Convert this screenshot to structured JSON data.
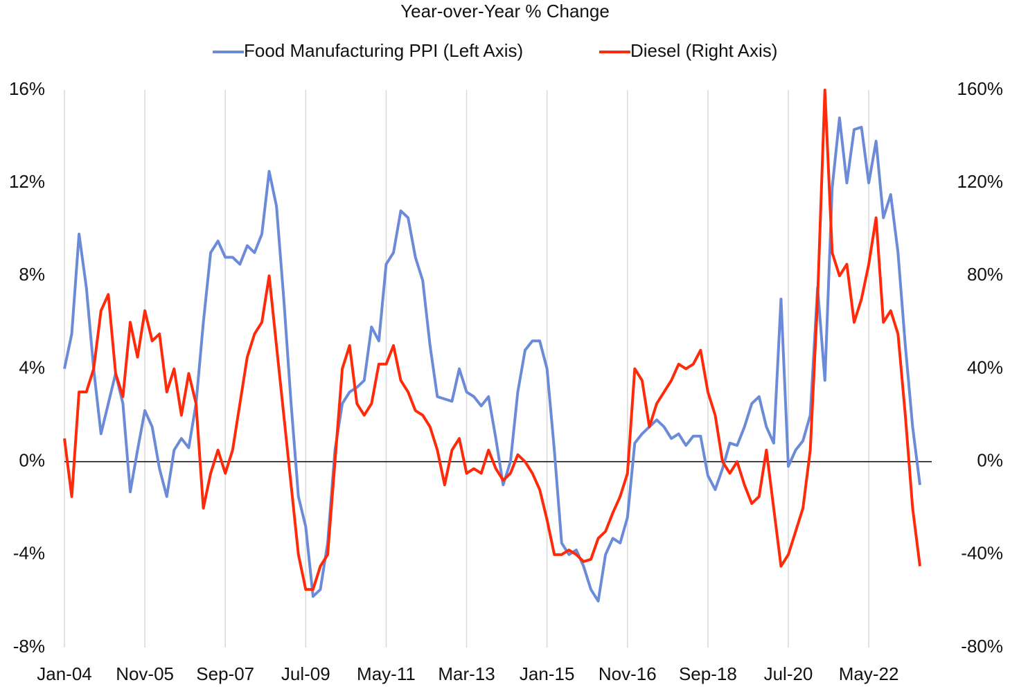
{
  "chart_data": {
    "type": "line",
    "title": "Year-over-Year % Change",
    "categories": [
      "Jan-04",
      null,
      null,
      null,
      null,
      null,
      null,
      null,
      null,
      null,
      null,
      "Nov-05",
      null,
      null,
      null,
      null,
      null,
      null,
      null,
      null,
      null,
      null,
      "Sep-07",
      null,
      null,
      null,
      null,
      null,
      null,
      null,
      null,
      null,
      null,
      "Jul-09",
      null,
      null,
      null,
      null,
      null,
      null,
      null,
      null,
      null,
      null,
      "May-11",
      null,
      null,
      null,
      null,
      null,
      null,
      null,
      null,
      null,
      null,
      "Mar-13",
      null,
      null,
      null,
      null,
      null,
      null,
      null,
      null,
      null,
      null,
      "Jan-15",
      null,
      null,
      null,
      null,
      null,
      null,
      null,
      null,
      null,
      null,
      "Nov-16",
      null,
      null,
      null,
      null,
      null,
      null,
      null,
      null,
      null,
      null,
      "Sep-18",
      null,
      null,
      null,
      null,
      null,
      null,
      null,
      null,
      null,
      null,
      "Jul-20",
      null,
      null,
      null,
      null,
      null,
      null,
      null,
      null,
      null,
      null,
      "May-22",
      null,
      null,
      null,
      null,
      null,
      null,
      null
    ],
    "series": [
      {
        "name": "Food Manufacturing PPI (Left Axis)",
        "color": "#6b8bd8",
        "axis": "y",
        "values": [
          4.0,
          5.5,
          9.8,
          7.5,
          4.0,
          1.2,
          2.5,
          3.8,
          2.5,
          -1.3,
          0.5,
          2.2,
          1.5,
          -0.3,
          -1.5,
          0.5,
          1.0,
          0.6,
          2.5,
          6.0,
          9.0,
          9.5,
          8.8,
          8.8,
          8.5,
          9.3,
          9.0,
          9.8,
          12.5,
          11.0,
          7.0,
          2.5,
          -1.5,
          -2.8,
          -5.8,
          -5.5,
          -3.5,
          0.5,
          2.5,
          3.0,
          3.2,
          3.5,
          5.8,
          5.2,
          8.5,
          9.0,
          10.8,
          10.5,
          8.8,
          7.8,
          5.0,
          2.8,
          2.7,
          2.6,
          4.0,
          3.0,
          2.8,
          2.4,
          2.8,
          1.0,
          -1.0,
          0.0,
          3.0,
          4.8,
          5.2,
          5.2,
          4.0,
          0.5,
          -3.5,
          -4.0,
          -3.8,
          -4.5,
          -5.5,
          -6.0,
          -4.0,
          -3.3,
          -3.5,
          -2.4,
          0.8,
          1.2,
          1.5,
          1.8,
          1.5,
          1.0,
          1.2,
          0.7,
          1.1,
          1.1,
          -0.6,
          -1.2,
          -0.3,
          0.8,
          0.7,
          1.5,
          2.5,
          2.8,
          1.5,
          0.8,
          7.0,
          -0.2,
          0.5,
          0.9,
          2.0,
          7.5,
          3.5,
          11.8,
          14.8,
          12.0,
          14.3,
          14.4,
          12.0,
          13.8,
          10.5,
          11.5,
          9.0,
          5.0,
          1.5,
          -1.0
        ]
      },
      {
        "name": "Diesel (Right Axis)",
        "color": "#ff2a0a",
        "axis": "y2",
        "values": [
          10,
          -15,
          30,
          30,
          40,
          65,
          72,
          38,
          28,
          60,
          45,
          65,
          52,
          55,
          30,
          40,
          20,
          38,
          25,
          -20,
          -5,
          5,
          -5,
          5,
          25,
          45,
          55,
          60,
          80,
          50,
          20,
          -10,
          -40,
          -55,
          -55,
          -45,
          -40,
          0,
          40,
          50,
          25,
          20,
          25,
          42,
          42,
          50,
          35,
          30,
          22,
          20,
          15,
          5,
          -10,
          5,
          10,
          -5,
          -3,
          -5,
          5,
          -3,
          -8,
          -5,
          3,
          0,
          -5,
          -12,
          -25,
          -40,
          -40,
          -38,
          -40,
          -43,
          -42,
          -33,
          -30,
          -22,
          -15,
          -5,
          40,
          35,
          15,
          25,
          30,
          35,
          42,
          40,
          42,
          48,
          30,
          20,
          0,
          -5,
          0,
          -10,
          -18,
          -15,
          5,
          -20,
          -45,
          -40,
          -30,
          -20,
          5,
          70,
          160,
          90,
          80,
          85,
          60,
          70,
          85,
          105,
          60,
          65,
          55,
          20,
          -20,
          -45
        ]
      }
    ],
    "ylim": [
      -8,
      16
    ],
    "yticks": [
      {
        "value": -8,
        "label": "-8%"
      },
      {
        "value": -4,
        "label": "-4%"
      },
      {
        "value": 0,
        "label": "0%"
      },
      {
        "value": 4,
        "label": "4%"
      },
      {
        "value": 8,
        "label": "8%"
      },
      {
        "value": 12,
        "label": "12%"
      },
      {
        "value": 16,
        "label": "16%"
      }
    ],
    "y2lim": [
      -80,
      160
    ],
    "y2ticks": [
      {
        "value": -80,
        "label": "-80%"
      },
      {
        "value": -40,
        "label": "-40%"
      },
      {
        "value": 0,
        "label": "0%"
      },
      {
        "value": 40,
        "label": "40%"
      },
      {
        "value": 80,
        "label": "80%"
      },
      {
        "value": 120,
        "label": "120%"
      },
      {
        "value": 160,
        "label": "160%"
      }
    ],
    "grid": true
  }
}
